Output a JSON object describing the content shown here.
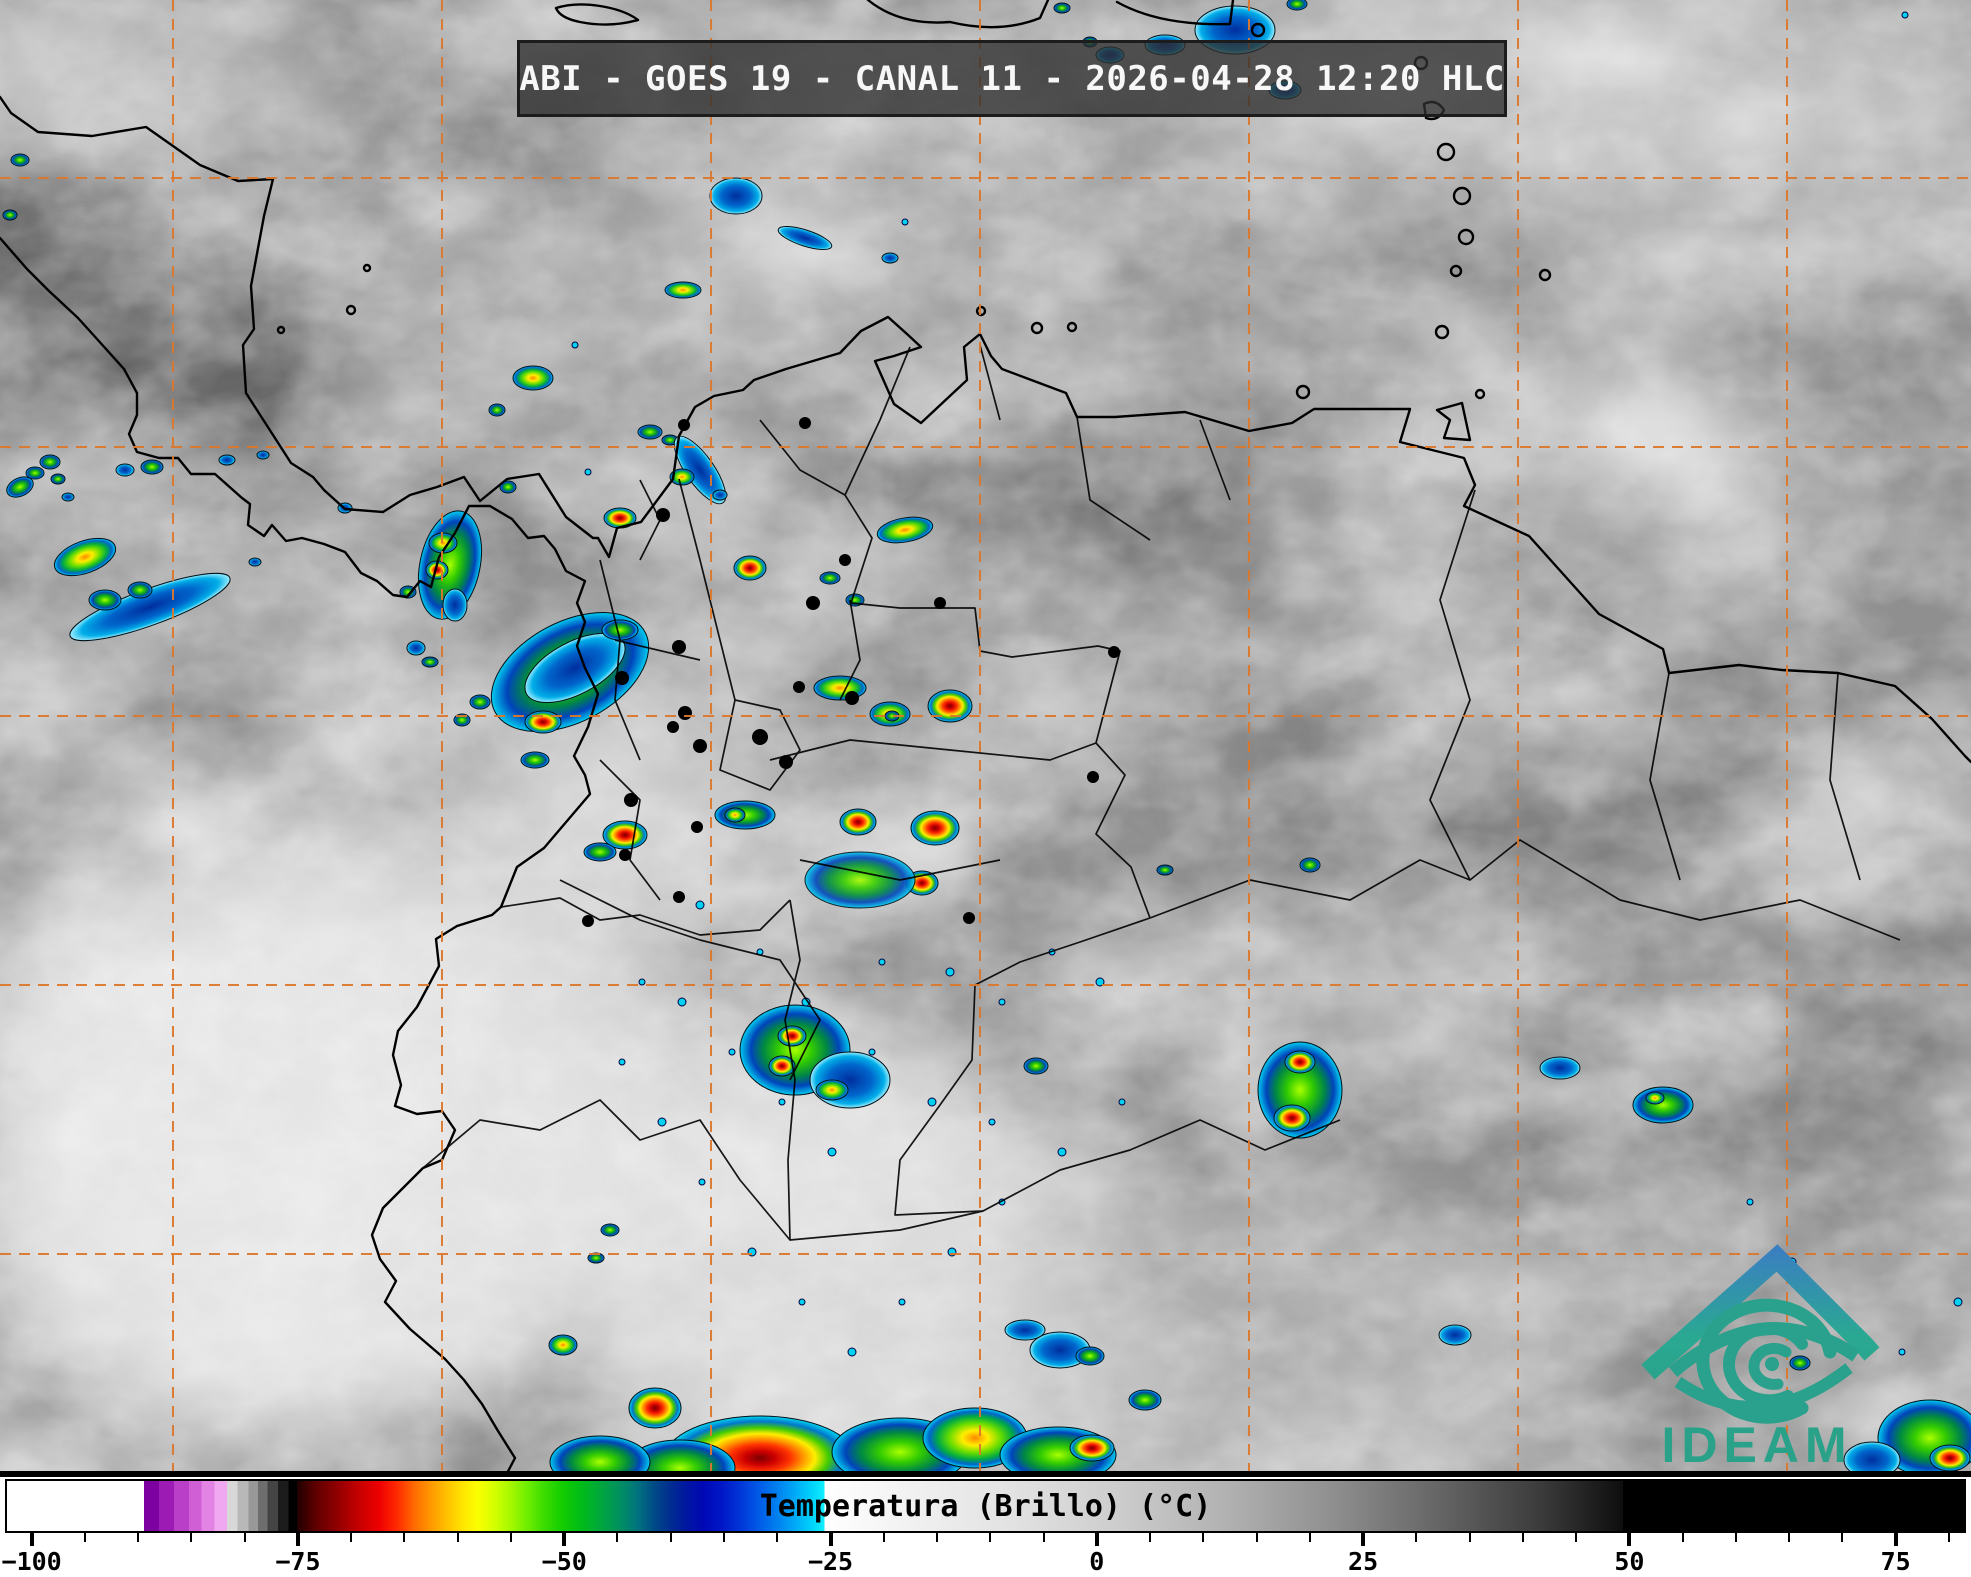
{
  "header": {
    "title": "ABI - GOES 19 - CANAL 11 - 2026-04-28 12:20 HLC"
  },
  "logo": {
    "text": "IDEAM",
    "teal": "#2aa189",
    "blue": "#3a7fc1"
  },
  "map": {
    "graticule_color": "#db772e",
    "coastline_color": "#000000",
    "ocean_gray": "#8f8f8f"
  },
  "colorbar": {
    "label": "Temperatura (Brillo) (°C)",
    "unit": "°C",
    "min": -102.5,
    "max": 81.6,
    "minor_step": 5,
    "minor_range": [
      -100,
      80
    ],
    "major_ticks": [
      {
        "v": -100,
        "label": "−100"
      },
      {
        "v": -75,
        "label": "−75"
      },
      {
        "v": -50,
        "label": "−50"
      },
      {
        "v": -25,
        "label": "−25"
      },
      {
        "v": 0,
        "label": "0"
      },
      {
        "v": 25,
        "label": "25"
      },
      {
        "v": 50,
        "label": "50"
      },
      {
        "v": 75,
        "label": "75"
      }
    ],
    "stops": [
      [
        -102.5,
        "#ffffff"
      ],
      [
        -89.6,
        "#ffffff"
      ],
      [
        -89.6,
        "#7d00a0"
      ],
      [
        -88.2,
        "#7d00a0"
      ],
      [
        -88.2,
        "#9b1bb4"
      ],
      [
        -86.8,
        "#9b1bb4"
      ],
      [
        -86.8,
        "#b93ec8"
      ],
      [
        -85.4,
        "#b93ec8"
      ],
      [
        -85.4,
        "#d05fd6"
      ],
      [
        -84.2,
        "#d05fd6"
      ],
      [
        -84.2,
        "#e383e3"
      ],
      [
        -83.0,
        "#e383e3"
      ],
      [
        -83.0,
        "#f0a8f0"
      ],
      [
        -81.8,
        "#f0a8f0"
      ],
      [
        -81.8,
        "#d8d8d8"
      ],
      [
        -80.8,
        "#d8d8d8"
      ],
      [
        -80.8,
        "#b8b8b8"
      ],
      [
        -79.8,
        "#b8b8b8"
      ],
      [
        -79.8,
        "#989898"
      ],
      [
        -78.9,
        "#989898"
      ],
      [
        -78.9,
        "#6e6e6e"
      ],
      [
        -78.0,
        "#6e6e6e"
      ],
      [
        -78.0,
        "#444444"
      ],
      [
        -77.0,
        "#444444"
      ],
      [
        -77.0,
        "#1c1c1c"
      ],
      [
        -76.0,
        "#1c1c1c"
      ],
      [
        -76.0,
        "#000000"
      ],
      [
        -75.2,
        "#000000"
      ],
      [
        -75.2,
        "#200000"
      ],
      [
        -73.5,
        "#5e0000"
      ],
      [
        -71.5,
        "#8f0000"
      ],
      [
        -69.5,
        "#c40000"
      ],
      [
        -67.5,
        "#ee0000"
      ],
      [
        -65.8,
        "#ff2a00"
      ],
      [
        -64.2,
        "#ff6a00"
      ],
      [
        -62.6,
        "#ff9900"
      ],
      [
        -61.0,
        "#ffc400"
      ],
      [
        -59.4,
        "#ffea00"
      ],
      [
        -58.2,
        "#fbff00"
      ],
      [
        -56.8,
        "#d8ff00"
      ],
      [
        -55.2,
        "#a8f800"
      ],
      [
        -53.6,
        "#70ee00"
      ],
      [
        -52.0,
        "#3cdd00"
      ],
      [
        -50.2,
        "#12cc00"
      ],
      [
        -48.4,
        "#00bb1a"
      ],
      [
        -46.6,
        "#00a63e"
      ],
      [
        -44.8,
        "#008f62"
      ],
      [
        -43.2,
        "#00737d"
      ],
      [
        -41.8,
        "#004f86"
      ],
      [
        -40.2,
        "#002f90"
      ],
      [
        -38.6,
        "#0017a0"
      ],
      [
        -37.0,
        "#0008b4"
      ],
      [
        -35.2,
        "#0018c8"
      ],
      [
        -33.4,
        "#0038d8"
      ],
      [
        -31.6,
        "#005ee8"
      ],
      [
        -29.8,
        "#0086f0"
      ],
      [
        -28.2,
        "#00aef8"
      ],
      [
        -26.8,
        "#00d2fa"
      ],
      [
        -25.6,
        "#10f0ff"
      ],
      [
        -25.6,
        "#ffffff"
      ],
      [
        -18,
        "#f2f2f2"
      ],
      [
        -8,
        "#e2e2e2"
      ],
      [
        2,
        "#cdcdcd"
      ],
      [
        12,
        "#b2b2b2"
      ],
      [
        22,
        "#909090"
      ],
      [
        32,
        "#666666"
      ],
      [
        42,
        "#3a3a3a"
      ],
      [
        49.5,
        "#0e0e0e"
      ],
      [
        49.5,
        "#000000"
      ],
      [
        81.6,
        "#000000"
      ]
    ]
  }
}
